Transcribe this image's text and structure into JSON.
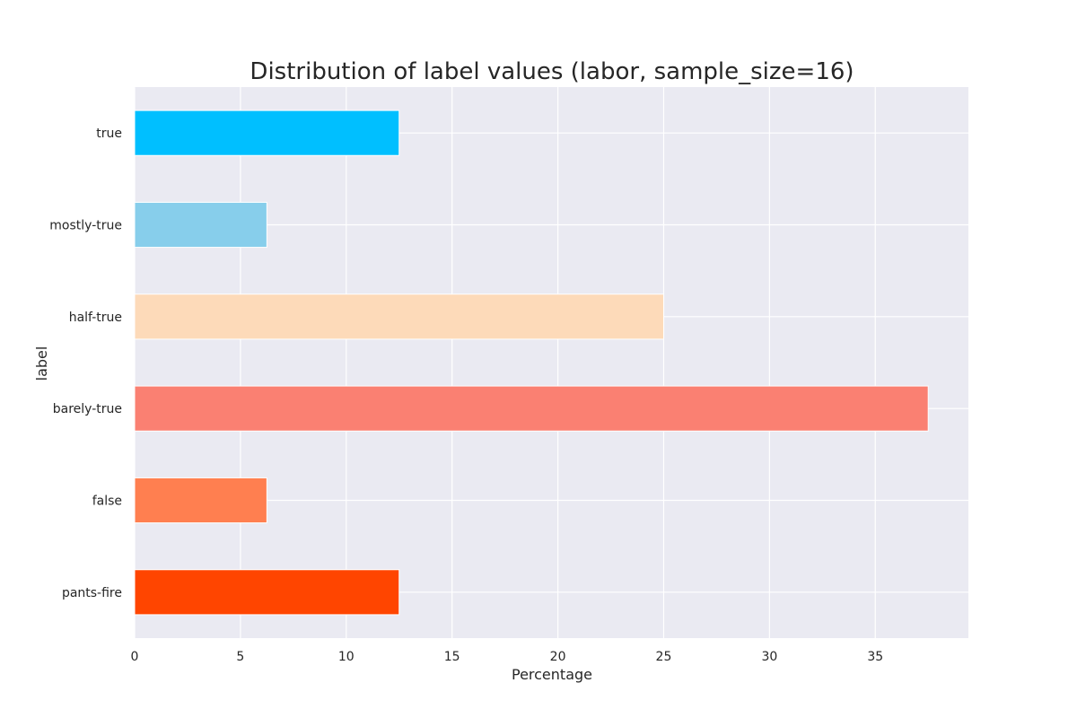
{
  "chart_data": {
    "type": "bar",
    "orientation": "horizontal",
    "title": "Distribution of label values (labor, sample_size=16)",
    "xlabel": "Percentage",
    "ylabel": "label",
    "categories": [
      "pants-fire",
      "false",
      "barely-true",
      "half-true",
      "mostly-true",
      "true"
    ],
    "values": [
      12.5,
      6.25,
      37.5,
      25.0,
      6.25,
      12.5
    ],
    "colors": [
      "#ff4500",
      "#ff7f50",
      "#fa8072",
      "#fddab9",
      "#87ceeb",
      "#00bfff"
    ],
    "xlim": [
      0,
      39.4
    ],
    "xticks": [
      0,
      5,
      10,
      15,
      20,
      25,
      30,
      35
    ],
    "grid": true,
    "legend": false,
    "background_color": "#eaeaf2",
    "grid_color": "#ffffff"
  }
}
